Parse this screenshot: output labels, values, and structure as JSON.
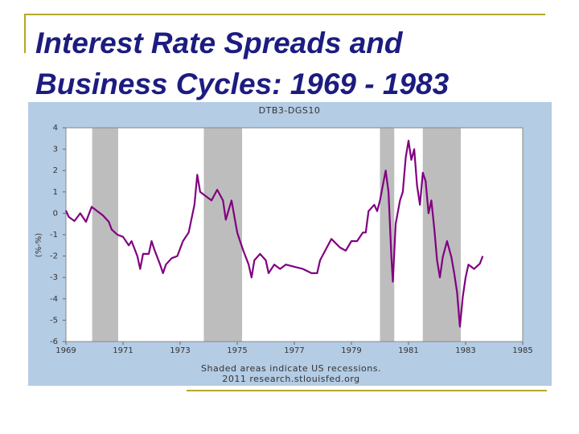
{
  "slide_title": [
    "Interest Rate Spreads and",
    "Business Cycles: 1969 - 1983"
  ],
  "chart_data": {
    "type": "line",
    "title": "DTB3-DGS10",
    "y_label": "(%-%)",
    "notes": [
      "Shaded areas indicate US recessions.",
      "2011 research.stlouisfed.org"
    ],
    "xlim": [
      1969,
      1985
    ],
    "xticks": [
      1969,
      1971,
      1973,
      1975,
      1977,
      1979,
      1981,
      1983,
      1985
    ],
    "ylim": [
      -6,
      4
    ],
    "yticks": [
      4,
      3,
      2,
      1,
      0,
      -1,
      -2,
      -3,
      -4,
      -5,
      -6
    ],
    "recessions": [
      [
        1969.92,
        1970.83
      ],
      [
        1973.83,
        1975.17
      ],
      [
        1980.0,
        1980.5
      ],
      [
        1981.5,
        1982.83
      ]
    ],
    "recession_color": "#bdbdbd",
    "x": [
      1969.0,
      1969.1,
      1969.3,
      1969.5,
      1969.7,
      1969.9,
      1970.1,
      1970.3,
      1970.5,
      1970.6,
      1970.8,
      1971.0,
      1971.2,
      1971.3,
      1971.5,
      1971.6,
      1971.7,
      1971.9,
      1972.0,
      1972.1,
      1972.3,
      1972.4,
      1972.5,
      1972.7,
      1972.9,
      1973.1,
      1973.3,
      1973.5,
      1973.6,
      1973.7,
      1973.9,
      1974.1,
      1974.3,
      1974.5,
      1974.6,
      1974.8,
      1975.0,
      1975.1,
      1975.2,
      1975.4,
      1975.5,
      1975.6,
      1975.8,
      1976.0,
      1976.1,
      1976.3,
      1976.5,
      1976.7,
      1977.0,
      1977.3,
      1977.6,
      1977.8,
      1977.9,
      1978.1,
      1978.3,
      1978.6,
      1978.8,
      1979.0,
      1979.2,
      1979.4,
      1979.5,
      1979.6,
      1979.8,
      1979.9,
      1980.0,
      1980.1,
      1980.2,
      1980.3,
      1980.4,
      1980.45,
      1980.55,
      1980.7,
      1980.8,
      1980.9,
      1981.0,
      1981.1,
      1981.2,
      1981.3,
      1981.4,
      1981.5,
      1981.6,
      1981.7,
      1981.8,
      1981.9,
      1982.0,
      1982.1,
      1982.2,
      1982.35,
      1982.5,
      1982.6,
      1982.7,
      1982.8,
      1982.9,
      1983.0,
      1983.1,
      1983.3,
      1983.5,
      1983.6
    ],
    "series": [
      {
        "name": "DTB3-DGS10",
        "color": "#800080",
        "values": [
          0.13,
          -0.17,
          -0.36,
          0.0,
          -0.4,
          0.3,
          0.1,
          -0.1,
          -0.4,
          -0.75,
          -1.0,
          -1.1,
          -1.5,
          -1.3,
          -2.0,
          -2.6,
          -1.9,
          -1.9,
          -1.3,
          -1.7,
          -2.4,
          -2.8,
          -2.4,
          -2.1,
          -2.0,
          -1.3,
          -0.9,
          0.4,
          1.8,
          1.0,
          0.8,
          0.6,
          1.1,
          0.6,
          -0.3,
          0.6,
          -0.9,
          -1.3,
          -1.7,
          -2.4,
          -3.0,
          -2.2,
          -1.9,
          -2.2,
          -2.8,
          -2.4,
          -2.6,
          -2.4,
          -2.5,
          -2.6,
          -2.8,
          -2.8,
          -2.2,
          -1.7,
          -1.2,
          -1.6,
          -1.75,
          -1.3,
          -1.3,
          -0.9,
          -0.9,
          0.1,
          0.4,
          0.1,
          0.6,
          1.3,
          2.0,
          1.0,
          -2.05,
          -3.2,
          -0.5,
          0.6,
          1.0,
          2.6,
          3.4,
          2.5,
          3.0,
          1.3,
          0.4,
          1.9,
          1.5,
          0.0,
          0.6,
          -0.7,
          -2.2,
          -3.0,
          -2.05,
          -1.3,
          -2.05,
          -2.8,
          -3.7,
          -5.3,
          -3.9,
          -3.0,
          -2.4,
          -2.6,
          -2.35,
          -2.0
        ]
      }
    ]
  }
}
